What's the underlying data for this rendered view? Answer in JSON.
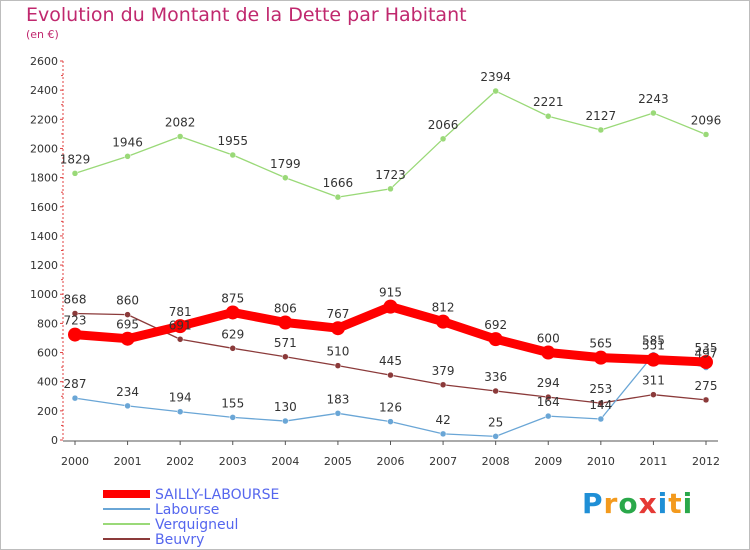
{
  "title": "Evolution du Montant de la Dette par Habitant",
  "subtitle": "(en €)",
  "logo": {
    "text": "Proxiti",
    "colors": [
      "#1f8fd6",
      "#f39a1d",
      "#2aa84a",
      "#e53935",
      "#1f8fd6",
      "#f39a1d",
      "#2aa84a"
    ]
  },
  "chart_data": {
    "type": "line",
    "x": [
      "2000",
      "2001",
      "2002",
      "2003",
      "2004",
      "2005",
      "2006",
      "2007",
      "2008",
      "2009",
      "2010",
      "2011",
      "2012"
    ],
    "ylim": [
      0,
      2600
    ],
    "yticks": [
      "0",
      "200",
      "400",
      "600",
      "800",
      "1000",
      "1200",
      "1400",
      "1600",
      "1800",
      "2000",
      "2200",
      "2400",
      "2600"
    ],
    "grid": false,
    "legend_position": "bottom-left",
    "series": [
      {
        "name": "SAILLY-LABOURSE",
        "color": "#ff0000",
        "values": [
          723,
          695,
          781,
          875,
          806,
          767,
          915,
          812,
          692,
          600,
          565,
          551,
          535
        ],
        "labels": [
          "723",
          "695",
          "781",
          "875",
          "806",
          "767",
          "915",
          "812",
          "692",
          "600",
          "565",
          "551",
          "535"
        ]
      },
      {
        "name": "Labourse",
        "color": "#6aa6d6",
        "values": [
          287,
          234,
          194,
          155,
          130,
          183,
          126,
          42,
          25,
          164,
          144,
          585,
          497
        ],
        "labels": [
          "287",
          "234",
          "194",
          "155",
          "130",
          "183",
          "126",
          "42",
          "25",
          "164",
          "144",
          "585",
          "497"
        ]
      },
      {
        "name": "Verquigneul",
        "color": "#9ad978",
        "values": [
          1829,
          1946,
          2082,
          1955,
          1799,
          1666,
          1723,
          2066,
          2394,
          2221,
          2127,
          2243,
          2096
        ],
        "labels": [
          "1829",
          "1946",
          "2082",
          "1955",
          "1799",
          "1666",
          "1723",
          "2066",
          "2394",
          "2221",
          "2127",
          "2243",
          "2096"
        ]
      },
      {
        "name": "Beuvry",
        "color": "#8b3a3a",
        "values": [
          868,
          860,
          691,
          629,
          571,
          510,
          445,
          379,
          336,
          294,
          253,
          311,
          275
        ],
        "labels": [
          "868",
          "860",
          "691",
          "629",
          "571",
          "510",
          "445",
          "379",
          "336",
          "294",
          "253",
          "311",
          "275"
        ]
      }
    ]
  }
}
